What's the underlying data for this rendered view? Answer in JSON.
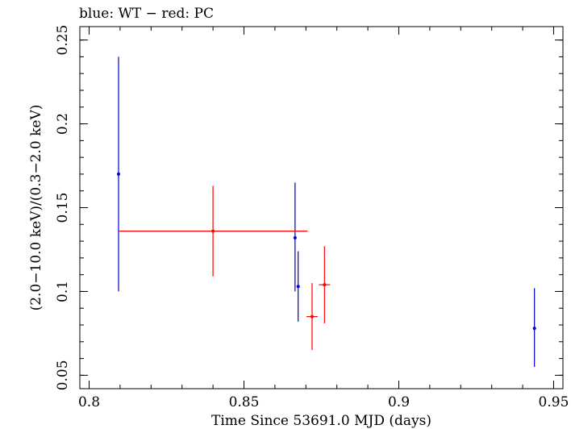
{
  "chart_data": {
    "type": "scatter",
    "title": "blue: WT − red: PC",
    "xlabel": "Time Since 53691.0 MJD (days)",
    "ylabel": "(2.0−10.0 keV)/(0.3−2.0 keV)",
    "xlim": [
      0.797,
      0.953
    ],
    "ylim": [
      0.042,
      0.258
    ],
    "x_ticks": [
      {
        "value": 0.8,
        "label": "0.8"
      },
      {
        "value": 0.85,
        "label": "0.85"
      },
      {
        "value": 0.9,
        "label": "0.9"
      },
      {
        "value": 0.95,
        "label": "0.95"
      }
    ],
    "y_ticks": [
      {
        "value": 0.05,
        "label": "0.05"
      },
      {
        "value": 0.1,
        "label": "0.1"
      },
      {
        "value": 0.15,
        "label": "0.15"
      },
      {
        "value": 0.2,
        "label": "0.2"
      },
      {
        "value": 0.25,
        "label": "0.25"
      }
    ],
    "x_minor_step": 0.01,
    "y_minor_step": 0.01,
    "series": [
      {
        "name": "WT",
        "color": "#0000cc",
        "points": [
          {
            "x": 0.8095,
            "y": 0.17,
            "xerr": 0.0002,
            "ylo": 0.1,
            "yhi": 0.24
          },
          {
            "x": 0.8665,
            "y": 0.132,
            "xerr": 0.0002,
            "ylo": 0.1,
            "yhi": 0.165
          },
          {
            "x": 0.8675,
            "y": 0.103,
            "xerr": 0.0002,
            "ylo": 0.082,
            "yhi": 0.124
          },
          {
            "x": 0.9438,
            "y": 0.078,
            "xerr": 0.0002,
            "ylo": 0.055,
            "yhi": 0.102
          }
        ]
      },
      {
        "name": "PC",
        "color": "#ff0000",
        "points": [
          {
            "x": 0.84,
            "y": 0.136,
            "xerr": 0.0305,
            "ylo": 0.109,
            "yhi": 0.163
          },
          {
            "x": 0.872,
            "y": 0.085,
            "xerr": 0.0018,
            "ylo": 0.065,
            "yhi": 0.105
          },
          {
            "x": 0.876,
            "y": 0.104,
            "xerr": 0.0018,
            "ylo": 0.081,
            "yhi": 0.127
          }
        ]
      }
    ]
  }
}
